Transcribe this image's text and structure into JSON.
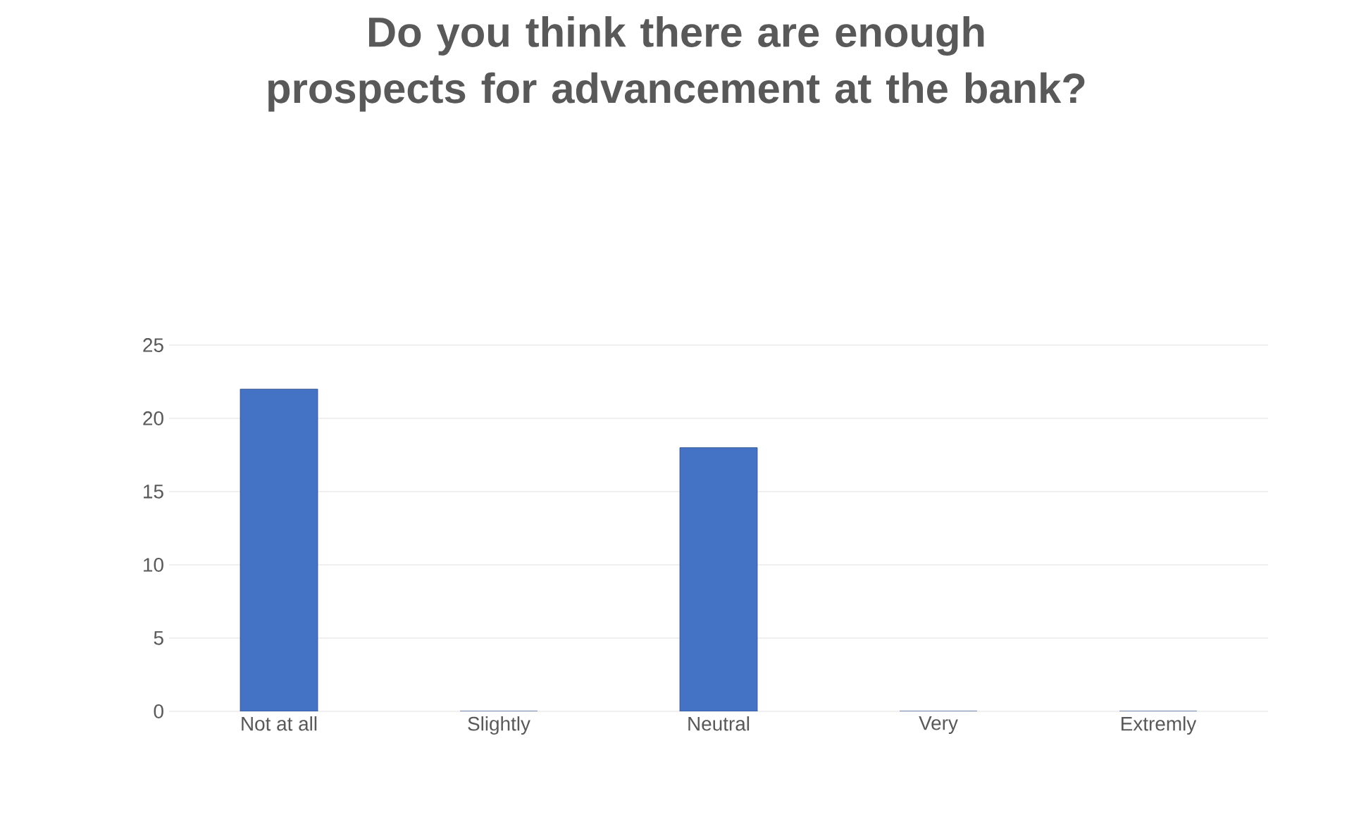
{
  "chart_data": {
    "type": "bar",
    "title": "Do you think there are enough prospects for advancement at the bank?",
    "categories": [
      "Not at all",
      "Slightly",
      "Neutral",
      "Very",
      "Extremly"
    ],
    "values": [
      22,
      0,
      18,
      0,
      0
    ],
    "color": "#4472c4",
    "ylim": [
      0,
      25
    ],
    "yticks": [
      0,
      5,
      10,
      15,
      20,
      25
    ],
    "grid": "y"
  }
}
